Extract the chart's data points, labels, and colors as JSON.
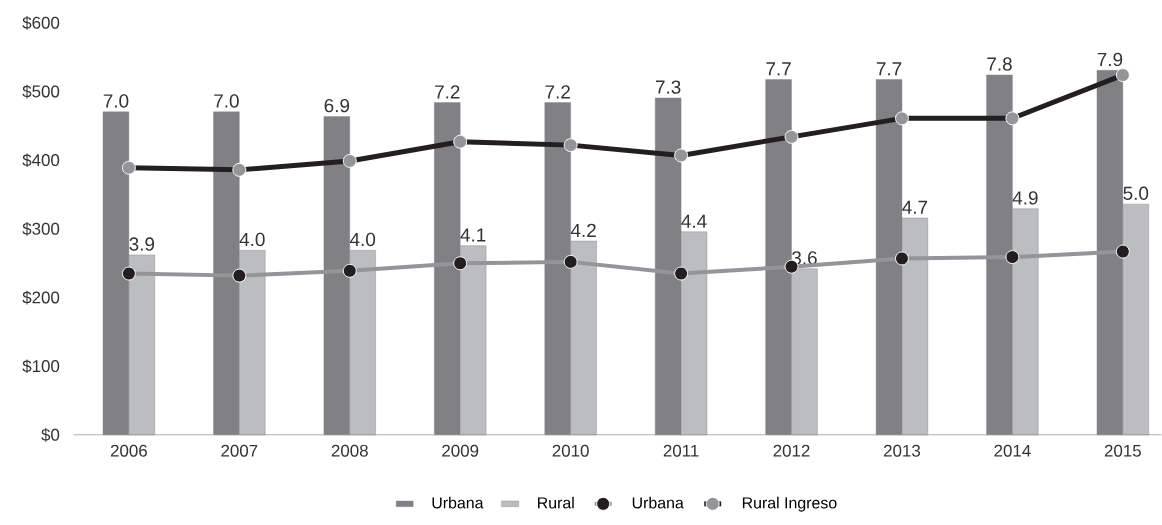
{
  "chart_data": {
    "type": "bar",
    "categories": [
      "2006",
      "2007",
      "2008",
      "2009",
      "2010",
      "2011",
      "2012",
      "2013",
      "2014",
      "2015"
    ],
    "series": [
      {
        "name": "Urbana",
        "axis": "y2",
        "color": "#808085",
        "values": [
          7.0,
          7.0,
          6.9,
          7.2,
          7.2,
          7.3,
          7.7,
          7.7,
          7.8,
          7.9
        ],
        "value_labels": [
          "7.0",
          "7.0",
          "6.9",
          "7.2",
          "7.2",
          "7.3",
          "7.7",
          "7.7",
          "7.8",
          "7.9"
        ]
      },
      {
        "name": "Rural",
        "axis": "y2",
        "color": "#bcbdc1",
        "values": [
          3.9,
          4.0,
          4.0,
          4.1,
          4.2,
          4.4,
          3.6,
          4.7,
          4.9,
          5.0
        ],
        "value_labels": [
          "3.9",
          "4.0",
          "4.0",
          "4.1",
          "4.2",
          "4.4",
          "3.6",
          "4.7",
          "4.9",
          "5.0"
        ]
      },
      {
        "name": "Urbana",
        "type": "line",
        "color": "#939598",
        "values": [
          235,
          232,
          239,
          250,
          252,
          235,
          245,
          257,
          259,
          267
        ]
      },
      {
        "name": "Rural Ingreso",
        "type": "line",
        "color": "#231f20",
        "values": [
          389,
          386,
          399,
          427,
          422,
          407,
          434,
          461,
          461,
          524
        ]
      }
    ],
    "ylim": [
      0,
      600
    ],
    "yticks": [
      {
        "value": 0,
        "label": "$0"
      },
      {
        "value": 100,
        "label": "$100"
      },
      {
        "value": 200,
        "label": "$200"
      },
      {
        "value": 300,
        "label": "$300"
      },
      {
        "value": 400,
        "label": "$400"
      },
      {
        "value": 500,
        "label": "$500"
      },
      {
        "value": 600,
        "label": "$600"
      }
    ],
    "legend": "bottom",
    "marker": "circle"
  }
}
